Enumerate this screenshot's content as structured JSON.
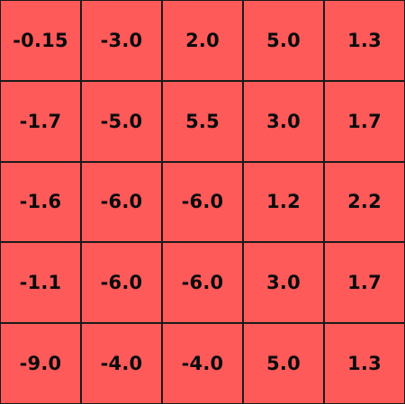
{
  "board": {
    "cell_color": "#ff5a5a",
    "border_color": "#1a1a1a",
    "rows": [
      [
        "-0.15",
        "-3.0",
        "2.0",
        "5.0",
        "1.3"
      ],
      [
        "-1.7",
        "-5.0",
        "5.5",
        "3.0",
        "1.7"
      ],
      [
        "-1.6",
        "-6.0",
        "-6.0",
        "1.2",
        "2.2"
      ],
      [
        "-1.1",
        "-6.0",
        "-6.0",
        "3.0",
        "1.7"
      ],
      [
        "-9.0",
        "-4.0",
        "-4.0",
        "5.0",
        "1.3"
      ]
    ]
  }
}
